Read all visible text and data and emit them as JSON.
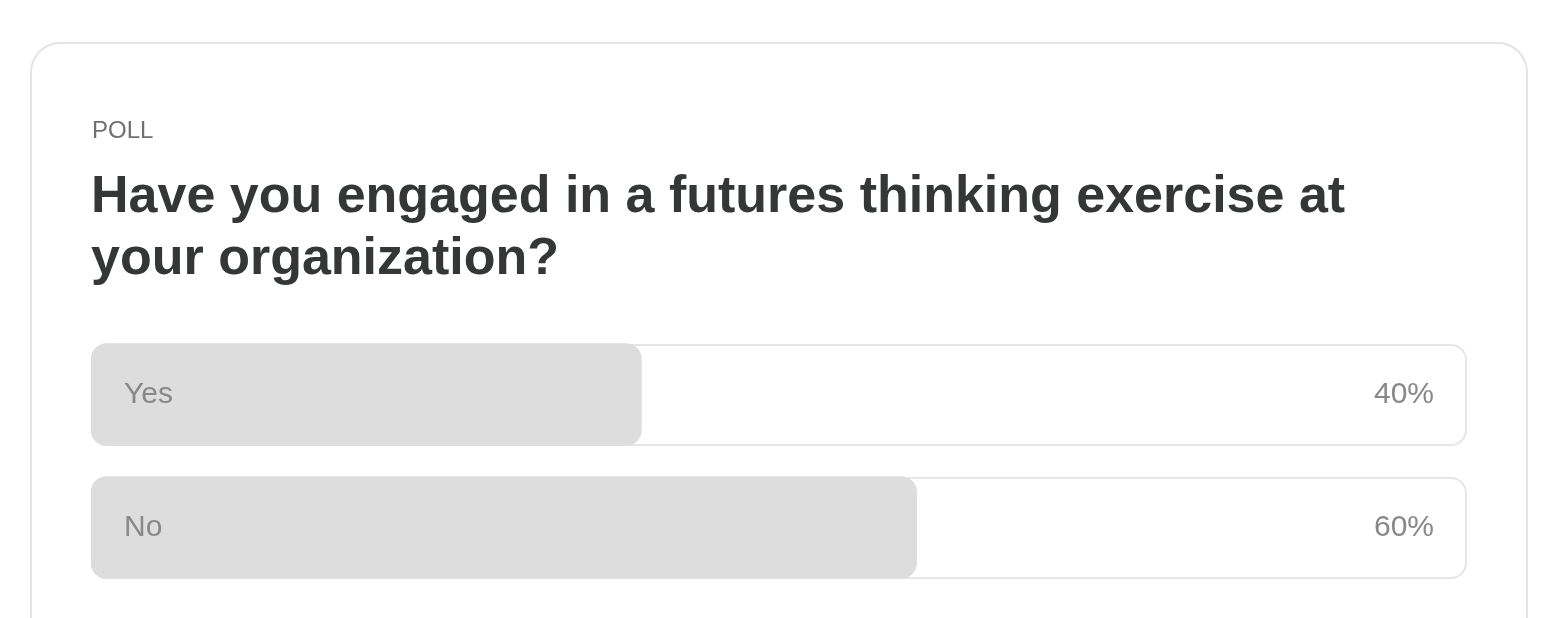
{
  "chart_data": {
    "type": "bar",
    "orientation": "horizontal",
    "subtitle": "POLL",
    "title": "Have you engaged in a futures thinking exercise at your organization?",
    "categories": [
      "Yes",
      "No"
    ],
    "values": [
      40,
      60
    ],
    "color": "#dddddd",
    "value_labels": [
      "40%",
      "60%"
    ],
    "xlim": [
      0,
      100
    ],
    "tick_labels": false
  }
}
